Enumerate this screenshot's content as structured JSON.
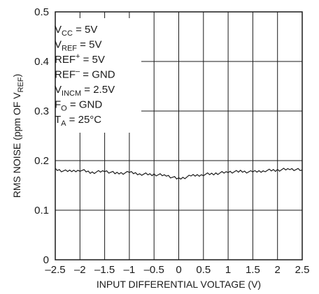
{
  "chart_data": {
    "type": "line",
    "title": "",
    "xlabel": "INPUT DIFFERENTIAL VOLTAGE (V)",
    "ylabel": "RMS NOISE (ppm OF V",
    "ylabel_sub": "REF",
    "ylabel_close": ")",
    "xlim": [
      -2.5,
      2.5
    ],
    "ylim": [
      0,
      0.5
    ],
    "grid": true,
    "x_ticks": [
      "–2.5",
      "–2",
      "–1.5",
      "–1",
      "–0.5",
      "0",
      "0.5",
      "1",
      "1.5",
      "2",
      "2.5"
    ],
    "y_ticks": [
      "0",
      "0.1",
      "0.2",
      "0.3",
      "0.4",
      "0.5"
    ],
    "x": [
      -2.5,
      -2.25,
      -2.0,
      -1.75,
      -1.5,
      -1.25,
      -1.0,
      -0.75,
      -0.5,
      -0.25,
      0.0,
      0.25,
      0.5,
      0.75,
      1.0,
      1.25,
      1.5,
      1.75,
      2.0,
      2.25,
      2.5
    ],
    "y": [
      0.182,
      0.178,
      0.181,
      0.176,
      0.179,
      0.174,
      0.176,
      0.173,
      0.172,
      0.17,
      0.163,
      0.169,
      0.172,
      0.174,
      0.177,
      0.178,
      0.177,
      0.18,
      0.181,
      0.183,
      0.181
    ],
    "annotations": [
      {
        "main": "V",
        "sub": "CC",
        "rest": " = 5V"
      },
      {
        "main": "V",
        "sub": "REF",
        "rest": " = 5V"
      },
      {
        "main": "REF",
        "sup": "+",
        "rest": " = 5V"
      },
      {
        "main": "REF",
        "sup": "–",
        "rest": " = GND"
      },
      {
        "main": "V",
        "sub": "INCM",
        "rest": " = 2.5V"
      },
      {
        "main": "F",
        "sub": "O",
        "rest": " = GND"
      },
      {
        "main": "T",
        "sub": "A",
        "rest": " = 25°C"
      }
    ],
    "line_color": "#1a1a1a",
    "grid_color": "#1a1a1a"
  }
}
